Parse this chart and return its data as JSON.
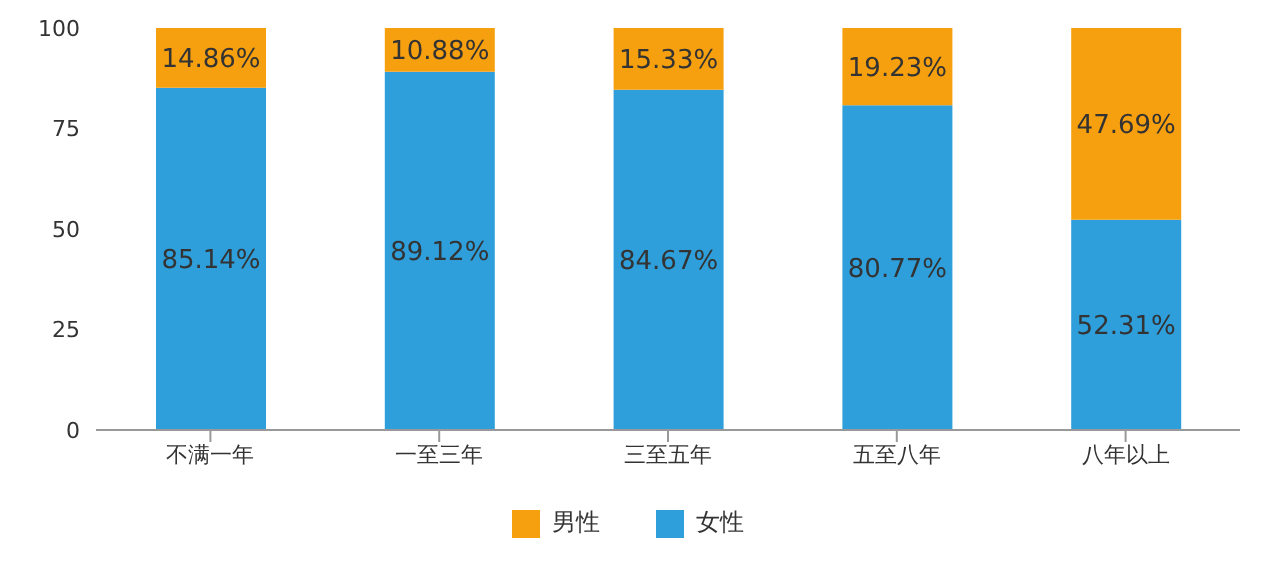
{
  "chart_data": {
    "type": "bar",
    "stacked": true,
    "categories": [
      "不满一年",
      "一至三年",
      "三至五年",
      "五至八年",
      "八年以上"
    ],
    "series": [
      {
        "name": "女性",
        "color": "#2e9fdb",
        "values": [
          85.14,
          89.12,
          84.67,
          80.77,
          52.31
        ],
        "value_labels": [
          "85.14%",
          "89.12%",
          "84.67%",
          "80.77%",
          "52.31%"
        ]
      },
      {
        "name": "男性",
        "color": "#f7a00f",
        "values": [
          14.86,
          10.88,
          15.33,
          19.23,
          47.69
        ],
        "value_labels": [
          "14.86%",
          "10.88%",
          "15.33%",
          "19.23%",
          "47.69%"
        ]
      }
    ],
    "ylim": [
      0,
      100
    ],
    "yticks": [
      0,
      25,
      50,
      75,
      100
    ],
    "grid": false,
    "legend": "bottom"
  }
}
